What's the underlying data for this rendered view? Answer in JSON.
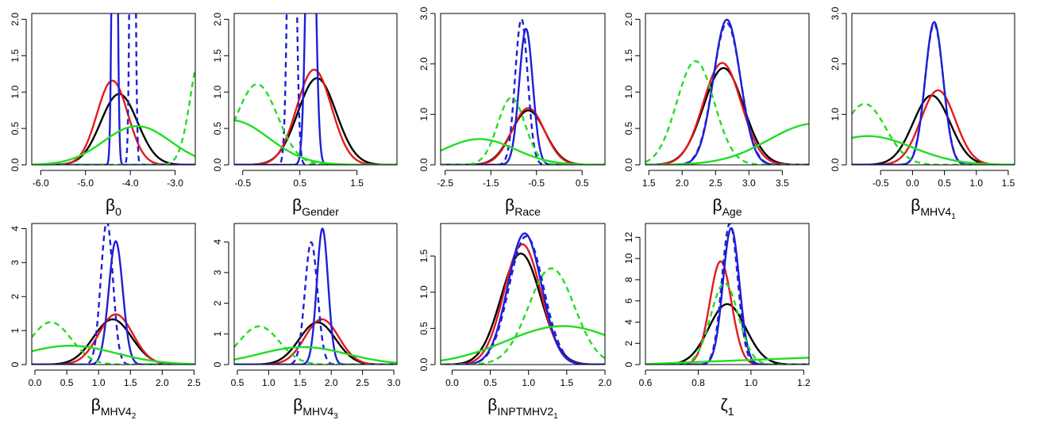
{
  "colors": {
    "black": "#000000",
    "red": "#e41a1c",
    "blue": "#1f1fd6",
    "green": "#22dd22",
    "ref": "#b3b3b3"
  },
  "chart_data": [
    {
      "type": "line",
      "title": "",
      "xlabel": {
        "base": "β",
        "sub": "0",
        "subsub": ""
      },
      "xlim": [
        -6.2,
        -2.55
      ],
      "ylim": [
        0,
        2.08
      ],
      "xticks": [
        -6.0,
        -5.0,
        -4.0,
        -3.0
      ],
      "xtick_labels": [
        "-6.0",
        "-5.0",
        "-4.0",
        "-3.0"
      ],
      "yticks": [
        0.0,
        0.5,
        1.0,
        1.5,
        2.0
      ],
      "ytick_labels": [
        "0.0",
        "0.5",
        "1.0",
        "1.5",
        "2.0"
      ],
      "series": [
        {
          "color": "black",
          "dashed": false,
          "dist": "normal",
          "mu": -4.25,
          "sd": 0.41,
          "scale": 1
        },
        {
          "color": "red",
          "dashed": false,
          "dist": "normal",
          "mu": -4.4,
          "sd": 0.345,
          "scale": 1
        },
        {
          "color": "blue",
          "dashed": false,
          "dist": "normal",
          "mu": -4.35,
          "sd": 0.045,
          "scale": 1
        },
        {
          "color": "blue",
          "dashed": true,
          "dist": "normal",
          "mu": -3.95,
          "sd": 0.045,
          "scale": 1
        },
        {
          "color": "green",
          "dashed": false,
          "dist": "normal",
          "mu": -3.85,
          "sd": 0.75,
          "scale": 1
        },
        {
          "color": "green",
          "dashed": true,
          "dist": "normal",
          "mu": -2.4,
          "sd": 0.25,
          "scale": 1
        }
      ]
    },
    {
      "type": "line",
      "title": "",
      "xlabel": {
        "base": "β",
        "sub": "Gender",
        "subsub": ""
      },
      "xlim": [
        -0.65,
        2.2
      ],
      "ylim": [
        0,
        2.08
      ],
      "xticks": [
        -0.5,
        0.5,
        1.5
      ],
      "xtick_labels": [
        "-0.5",
        "0.5",
        "1.5"
      ],
      "yticks": [
        0.0,
        0.5,
        1.0,
        1.5,
        2.0
      ],
      "ytick_labels": [
        "0.0",
        "0.5",
        "1.0",
        "1.5",
        "2.0"
      ],
      "series": [
        {
          "color": "black",
          "dashed": false,
          "dist": "normal",
          "mu": 0.8,
          "sd": 0.335,
          "scale": 1
        },
        {
          "color": "red",
          "dashed": false,
          "dist": "normal",
          "mu": 0.75,
          "sd": 0.305,
          "scale": 1
        },
        {
          "color": "blue",
          "dashed": false,
          "dist": "normal",
          "mu": 0.69,
          "sd": 0.07,
          "scale": 1
        },
        {
          "color": "blue",
          "dashed": true,
          "dist": "normal",
          "mu": 0.36,
          "sd": 0.06,
          "scale": 1
        },
        {
          "color": "green",
          "dashed": false,
          "dist": "normal",
          "mu": -0.7,
          "sd": 0.65,
          "scale": 1
        },
        {
          "color": "green",
          "dashed": true,
          "dist": "normal",
          "mu": -0.25,
          "sd": 0.36,
          "scale": 1
        }
      ]
    },
    {
      "type": "line",
      "title": "",
      "xlabel": {
        "base": "β",
        "sub": "Race",
        "subsub": ""
      },
      "xlim": [
        -2.6,
        1.0
      ],
      "ylim": [
        0,
        3.0
      ],
      "xticks": [
        -2.5,
        -1.5,
        -0.5,
        0.5
      ],
      "xtick_labels": [
        "-2.5",
        "-1.5",
        "-0.5",
        "0.5"
      ],
      "yticks": [
        0.0,
        1.0,
        2.0,
        3.0
      ],
      "ytick_labels": [
        "0.0",
        "1.0",
        "2.0",
        "3.0"
      ],
      "series": [
        {
          "color": "black",
          "dashed": false,
          "dist": "normal",
          "mu": -0.68,
          "sd": 0.37,
          "scale": 1
        },
        {
          "color": "red",
          "dashed": false,
          "dist": "normal",
          "mu": -0.68,
          "sd": 0.355,
          "scale": 1
        },
        {
          "color": "blue",
          "dashed": false,
          "dist": "normal",
          "mu": -0.73,
          "sd": 0.148,
          "scale": 1
        },
        {
          "color": "blue",
          "dashed": true,
          "dist": "normal",
          "mu": -0.83,
          "sd": 0.138,
          "scale": 1
        },
        {
          "color": "green",
          "dashed": false,
          "dist": "normal",
          "mu": -1.75,
          "sd": 0.78,
          "scale": 1
        },
        {
          "color": "green",
          "dashed": true,
          "dist": "normal",
          "mu": -1.05,
          "sd": 0.3,
          "scale": 1
        }
      ]
    },
    {
      "type": "line",
      "title": "",
      "xlabel": {
        "base": "β",
        "sub": "Age",
        "subsub": ""
      },
      "xlim": [
        1.45,
        3.9
      ],
      "ylim": [
        0,
        2.08
      ],
      "xticks": [
        1.5,
        2.0,
        2.5,
        3.0,
        3.5
      ],
      "xtick_labels": [
        "1.5",
        "2.0",
        "2.5",
        "3.0",
        "3.5"
      ],
      "yticks": [
        0.0,
        0.5,
        1.0,
        1.5,
        2.0
      ],
      "ytick_labels": [
        "0.0",
        "0.5",
        "1.0",
        "1.5",
        "2.0"
      ],
      "series": [
        {
          "color": "black",
          "dashed": false,
          "dist": "normal",
          "mu": 2.62,
          "sd": 0.3,
          "scale": 1
        },
        {
          "color": "red",
          "dashed": false,
          "dist": "normal",
          "mu": 2.6,
          "sd": 0.285,
          "scale": 1
        },
        {
          "color": "blue",
          "dashed": false,
          "dist": "normal",
          "mu": 2.67,
          "sd": 0.2,
          "scale": 1
        },
        {
          "color": "blue",
          "dashed": true,
          "dist": "normal",
          "mu": 2.67,
          "sd": 0.205,
          "scale": 1
        },
        {
          "color": "green",
          "dashed": false,
          "dist": "normal",
          "mu": 4.0,
          "sd": 0.7,
          "scale": 1
        },
        {
          "color": "green",
          "dashed": true,
          "dist": "normal",
          "mu": 2.2,
          "sd": 0.28,
          "scale": 1
        }
      ]
    },
    {
      "type": "line",
      "title": "",
      "xlabel": {
        "base": "β",
        "sub": "MHV4",
        "subsub": "1"
      },
      "xlim": [
        -0.95,
        1.6
      ],
      "ylim": [
        0,
        3.0
      ],
      "xticks": [
        -0.5,
        0.0,
        0.5,
        1.0,
        1.5
      ],
      "xtick_labels": [
        "-0.5",
        "0.0",
        "0.5",
        "1.0",
        "1.5"
      ],
      "yticks": [
        0.0,
        1.0,
        2.0,
        3.0
      ],
      "ytick_labels": [
        "0.0",
        "1.0",
        "2.0",
        "3.0"
      ],
      "series": [
        {
          "color": "black",
          "dashed": false,
          "dist": "normal",
          "mu": 0.3,
          "sd": 0.29,
          "scale": 1
        },
        {
          "color": "red",
          "dashed": false,
          "dist": "normal",
          "mu": 0.4,
          "sd": 0.27,
          "scale": 1
        },
        {
          "color": "blue",
          "dashed": false,
          "dist": "normal",
          "mu": 0.34,
          "sd": 0.141,
          "scale": 1
        },
        {
          "color": "blue",
          "dashed": true,
          "dist": "normal",
          "mu": 0.34,
          "sd": 0.143,
          "scale": 1
        },
        {
          "color": "green",
          "dashed": false,
          "dist": "normal",
          "mu": -0.7,
          "sd": 0.7,
          "scale": 1
        },
        {
          "color": "green",
          "dashed": true,
          "dist": "normal",
          "mu": -0.75,
          "sd": 0.33,
          "scale": 1
        }
      ]
    },
    {
      "type": "line",
      "title": "",
      "xlabel": {
        "base": "β",
        "sub": "MHV4",
        "subsub": "2"
      },
      "xlim": [
        -0.05,
        2.52
      ],
      "ylim": [
        0,
        4.15
      ],
      "xticks": [
        0.0,
        0.5,
        1.0,
        1.5,
        2.0,
        2.5
      ],
      "xtick_labels": [
        "0.0",
        "0.5",
        "1.0",
        "1.5",
        "2.0",
        "2.5"
      ],
      "yticks": [
        0,
        1,
        2,
        3,
        4
      ],
      "ytick_labels": [
        "0",
        "1",
        "2",
        "3",
        "4"
      ],
      "series": [
        {
          "color": "black",
          "dashed": false,
          "dist": "normal",
          "mu": 1.22,
          "sd": 0.3,
          "scale": 1
        },
        {
          "color": "red",
          "dashed": false,
          "dist": "normal",
          "mu": 1.27,
          "sd": 0.27,
          "scale": 1
        },
        {
          "color": "blue",
          "dashed": false,
          "dist": "normal",
          "mu": 1.27,
          "sd": 0.11,
          "scale": 1
        },
        {
          "color": "blue",
          "dashed": true,
          "dist": "normal",
          "mu": 1.13,
          "sd": 0.095,
          "scale": 1
        },
        {
          "color": "green",
          "dashed": false,
          "dist": "normal",
          "mu": 0.55,
          "sd": 0.72,
          "scale": 1
        },
        {
          "color": "green",
          "dashed": true,
          "dist": "normal",
          "mu": 0.25,
          "sd": 0.32,
          "scale": 1
        }
      ]
    },
    {
      "type": "line",
      "title": "",
      "xlabel": {
        "base": "β",
        "sub": "MHV4",
        "subsub": "3"
      },
      "xlim": [
        0.45,
        3.05
      ],
      "ylim": [
        0,
        4.6
      ],
      "xticks": [
        0.5,
        1.0,
        1.5,
        2.0,
        2.5,
        3.0
      ],
      "xtick_labels": [
        "0.5",
        "1.0",
        "1.5",
        "2.0",
        "2.5",
        "3.0"
      ],
      "yticks": [
        0,
        1,
        2,
        3,
        4
      ],
      "ytick_labels": [
        "0",
        "1",
        "2",
        "3",
        "4"
      ],
      "series": [
        {
          "color": "black",
          "dashed": false,
          "dist": "normal",
          "mu": 1.78,
          "sd": 0.29,
          "scale": 1
        },
        {
          "color": "red",
          "dashed": false,
          "dist": "normal",
          "mu": 1.85,
          "sd": 0.27,
          "scale": 1
        },
        {
          "color": "blue",
          "dashed": false,
          "dist": "normal",
          "mu": 1.86,
          "sd": 0.09,
          "scale": 1
        },
        {
          "color": "blue",
          "dashed": true,
          "dist": "normal",
          "mu": 1.68,
          "sd": 0.1,
          "scale": 1
        },
        {
          "color": "green",
          "dashed": false,
          "dist": "normal",
          "mu": 1.55,
          "sd": 0.7,
          "scale": 1
        },
        {
          "color": "green",
          "dashed": true,
          "dist": "normal",
          "mu": 0.85,
          "sd": 0.32,
          "scale": 1
        }
      ]
    },
    {
      "type": "line",
      "title": "",
      "xlabel": {
        "base": "β",
        "sub": "INPTMHV2",
        "subsub": "1"
      },
      "xlim": [
        -0.15,
        2.0
      ],
      "ylim": [
        0,
        1.95
      ],
      "xticks": [
        0.0,
        0.5,
        1.0,
        1.5,
        2.0
      ],
      "xtick_labels": [
        "0.0",
        "0.5",
        "1.0",
        "1.5",
        "2.0"
      ],
      "yticks": [
        0.0,
        0.5,
        1.0,
        1.5
      ],
      "ytick_labels": [
        "0.0",
        "0.5",
        "1.0",
        "1.5"
      ],
      "series": [
        {
          "color": "black",
          "dashed": false,
          "dist": "normal",
          "mu": 0.9,
          "sd": 0.26,
          "scale": 1
        },
        {
          "color": "red",
          "dashed": false,
          "dist": "normal",
          "mu": 0.92,
          "sd": 0.24,
          "scale": 1
        },
        {
          "color": "blue",
          "dashed": false,
          "dist": "normal",
          "mu": 0.95,
          "sd": 0.22,
          "scale": 1
        },
        {
          "color": "blue",
          "dashed": true,
          "dist": "normal",
          "mu": 0.97,
          "sd": 0.225,
          "scale": 1
        },
        {
          "color": "green",
          "dashed": false,
          "dist": "normal",
          "mu": 1.45,
          "sd": 0.75,
          "scale": 1
        },
        {
          "color": "green",
          "dashed": true,
          "dist": "normal",
          "mu": 1.3,
          "sd": 0.3,
          "scale": 1
        }
      ]
    },
    {
      "type": "line",
      "title": "",
      "xlabel": {
        "base": "ζ",
        "sub": "1",
        "subsub": ""
      },
      "xlim": [
        0.6,
        1.22
      ],
      "ylim": [
        0,
        13.3
      ],
      "xticks": [
        0.6,
        0.8,
        1.0,
        1.2
      ],
      "xtick_labels": [
        "0.6",
        "0.8",
        "1.0",
        "1.2"
      ],
      "yticks": [
        0,
        2,
        4,
        6,
        8,
        10,
        12
      ],
      "ytick_labels": [
        "0",
        "2",
        "4",
        "6",
        "8",
        "10",
        "12"
      ],
      "series": [
        {
          "color": "black",
          "dashed": false,
          "dist": "normal",
          "mu": 0.91,
          "sd": 0.07,
          "scale": 1
        },
        {
          "color": "red",
          "dashed": false,
          "dist": "normal",
          "mu": 0.885,
          "sd": 0.041,
          "scale": 1
        },
        {
          "color": "blue",
          "dashed": false,
          "dist": "normal",
          "mu": 0.925,
          "sd": 0.031,
          "scale": 1
        },
        {
          "color": "blue",
          "dashed": true,
          "dist": "normal",
          "mu": 0.92,
          "sd": 0.03,
          "scale": 1
        },
        {
          "color": "green",
          "dashed": false,
          "dist": "linear",
          "y0": 0.05,
          "y1": 0.65,
          "scale": 1
        },
        {
          "color": "green",
          "dashed": true,
          "dist": "normal",
          "mu": 0.9,
          "sd": 0.052,
          "scale": 1
        }
      ]
    }
  ]
}
